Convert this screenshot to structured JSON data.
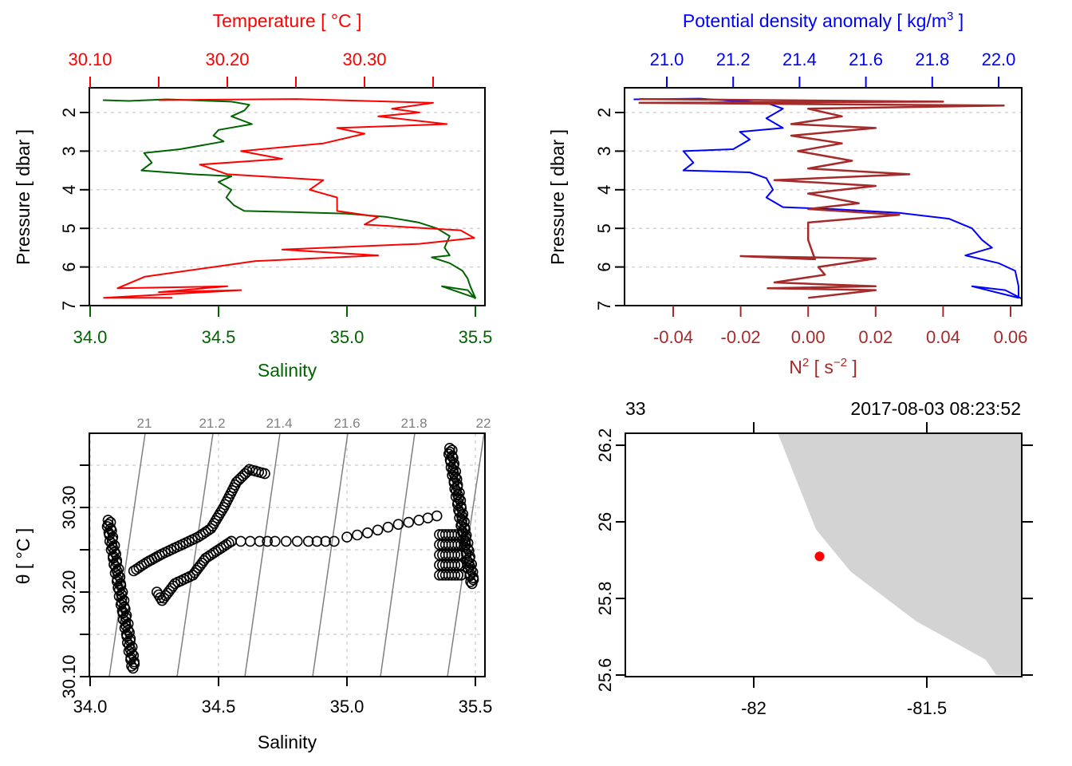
{
  "colors": {
    "salinity": "#006400",
    "temperature": "#ff0000",
    "density": "#0000ff",
    "n2": "#a52a2a",
    "grid": "#d3d3d3",
    "isopycnal": "#808080",
    "land": "#d3d3d3",
    "station": "#ff0000",
    "frame": "#000000"
  },
  "chart_data": [
    {
      "type": "line",
      "panel": "salinity-temperature-profile",
      "title": "",
      "top_axis": {
        "label": "Temperature [ °C ]",
        "ticks": [
          30.1,
          30.15,
          30.2,
          30.25,
          30.3,
          30.35
        ],
        "tick_labels": [
          "30.10",
          "",
          "30.20",
          "",
          "30.30",
          ""
        ],
        "range": [
          30.1,
          30.388
        ]
      },
      "bottom_axis": {
        "label": "Salinity",
        "ticks": [
          34.0,
          34.5,
          35.0,
          35.5
        ],
        "tick_labels": [
          "34.0",
          "34.5",
          "35.0",
          "35.5"
        ],
        "range": [
          34.0,
          35.54
        ]
      },
      "ylabel": "Pressure [ dbar ]",
      "y_ticks": [
        2,
        3,
        4,
        5,
        6,
        7
      ],
      "ylim": [
        7,
        1.35
      ],
      "grid": "horizontal dashed",
      "series": [
        {
          "name": "Salinity",
          "axis": "bottom",
          "points": [
            [
              34.05,
              1.68
            ],
            [
              34.15,
              1.7
            ],
            [
              34.3,
              1.66
            ],
            [
              34.55,
              1.72
            ],
            [
              34.62,
              1.8
            ],
            [
              34.6,
              1.95
            ],
            [
              34.55,
              2.1
            ],
            [
              34.63,
              2.3
            ],
            [
              34.5,
              2.45
            ],
            [
              34.48,
              2.6
            ],
            [
              34.52,
              2.75
            ],
            [
              34.35,
              2.95
            ],
            [
              34.21,
              3.05
            ],
            [
              34.24,
              3.3
            ],
            [
              34.2,
              3.5
            ],
            [
              34.4,
              3.6
            ],
            [
              34.55,
              3.65
            ],
            [
              34.5,
              3.8
            ],
            [
              34.55,
              4.0
            ],
            [
              34.53,
              4.2
            ],
            [
              34.56,
              4.4
            ],
            [
              34.6,
              4.55
            ],
            [
              34.8,
              4.58
            ],
            [
              35.0,
              4.62
            ],
            [
              35.15,
              4.7
            ],
            [
              35.28,
              4.85
            ],
            [
              35.35,
              5.0
            ],
            [
              35.4,
              5.2
            ],
            [
              35.38,
              5.5
            ],
            [
              35.4,
              5.7
            ],
            [
              35.33,
              5.75
            ],
            [
              35.4,
              5.9
            ],
            [
              35.45,
              6.1
            ],
            [
              35.47,
              6.3
            ],
            [
              35.48,
              6.5
            ],
            [
              35.5,
              6.8
            ],
            [
              35.37,
              6.5
            ],
            [
              35.47,
              6.6
            ],
            [
              35.5,
              6.82
            ]
          ]
        },
        {
          "name": "Temperature",
          "axis": "top",
          "points": [
            [
              30.15,
              1.68
            ],
            [
              30.25,
              1.65
            ],
            [
              30.32,
              1.72
            ],
            [
              30.35,
              1.75
            ],
            [
              30.32,
              1.9
            ],
            [
              30.34,
              2.0
            ],
            [
              30.31,
              2.1
            ],
            [
              30.36,
              2.3
            ],
            [
              30.28,
              2.4
            ],
            [
              30.3,
              2.55
            ],
            [
              30.27,
              2.8
            ],
            [
              30.21,
              3.0
            ],
            [
              30.24,
              3.2
            ],
            [
              30.18,
              3.35
            ],
            [
              30.2,
              3.6
            ],
            [
              30.27,
              3.75
            ],
            [
              30.26,
              4.0
            ],
            [
              30.28,
              4.2
            ],
            [
              30.28,
              4.55
            ],
            [
              30.31,
              4.7
            ],
            [
              30.3,
              4.9
            ],
            [
              30.37,
              5.05
            ],
            [
              30.38,
              5.25
            ],
            [
              30.34,
              5.4
            ],
            [
              30.24,
              5.55
            ],
            [
              30.31,
              5.7
            ],
            [
              30.22,
              5.85
            ],
            [
              30.19,
              6.0
            ],
            [
              30.14,
              6.25
            ],
            [
              30.12,
              6.55
            ],
            [
              30.2,
              6.5
            ],
            [
              30.15,
              6.65
            ],
            [
              30.21,
              6.6
            ],
            [
              30.11,
              6.8
            ],
            [
              30.16,
              6.8
            ]
          ]
        }
      ]
    },
    {
      "type": "line",
      "panel": "density-n2-profile",
      "title": "",
      "top_axis": {
        "label": "Potential density anomaly [ kg/m³ ]",
        "ticks": [
          21.0,
          21.2,
          21.4,
          21.6,
          21.8,
          22.0
        ],
        "tick_labels": [
          "21.0",
          "21.2",
          "21.4",
          "21.6",
          "21.8",
          "22.0"
        ],
        "range": [
          20.88,
          22.08
        ]
      },
      "bottom_axis": {
        "label": "N² [ s⁻² ]",
        "ticks": [
          -0.04,
          -0.02,
          0.0,
          0.02,
          0.04,
          0.06
        ],
        "tick_labels": [
          "-0.04",
          "-0.02",
          "0.00",
          "0.02",
          "0.04",
          "0.06"
        ],
        "range": [
          -0.054,
          0.064
        ]
      },
      "ylabel": "Pressure [ dbar ]",
      "y_ticks": [
        2,
        3,
        4,
        5,
        6,
        7
      ],
      "ylim": [
        7,
        1.35
      ],
      "grid": "horizontal dashed",
      "series": [
        {
          "name": "Potential density anomaly",
          "axis": "top",
          "points": [
            [
              20.9,
              1.66
            ],
            [
              21.1,
              1.64
            ],
            [
              21.2,
              1.7
            ],
            [
              21.3,
              1.75
            ],
            [
              21.35,
              1.9
            ],
            [
              21.33,
              2.0
            ],
            [
              21.3,
              2.15
            ],
            [
              21.35,
              2.4
            ],
            [
              21.22,
              2.5
            ],
            [
              21.25,
              2.7
            ],
            [
              21.2,
              2.95
            ],
            [
              21.05,
              3.0
            ],
            [
              21.08,
              3.3
            ],
            [
              21.05,
              3.5
            ],
            [
              21.25,
              3.55
            ],
            [
              21.3,
              3.7
            ],
            [
              21.32,
              4.0
            ],
            [
              21.3,
              4.2
            ],
            [
              21.35,
              4.45
            ],
            [
              21.5,
              4.5
            ],
            [
              21.7,
              4.6
            ],
            [
              21.85,
              4.75
            ],
            [
              21.92,
              5.0
            ],
            [
              21.95,
              5.3
            ],
            [
              21.98,
              5.5
            ],
            [
              21.9,
              5.7
            ],
            [
              22.0,
              5.9
            ],
            [
              22.05,
              6.1
            ],
            [
              22.06,
              6.5
            ],
            [
              22.06,
              6.8
            ],
            [
              21.92,
              6.5
            ],
            [
              22.02,
              6.6
            ],
            [
              22.07,
              6.82
            ]
          ]
        },
        {
          "name": "N2",
          "axis": "bottom",
          "points": [
            [
              -0.05,
              1.65
            ],
            [
              0.04,
              1.72
            ],
            [
              -0.05,
              1.75
            ],
            [
              0.058,
              1.82
            ],
            [
              0.0,
              1.9
            ],
            [
              0.01,
              2.1
            ],
            [
              -0.005,
              2.3
            ],
            [
              0.02,
              2.4
            ],
            [
              -0.005,
              2.6
            ],
            [
              0.01,
              2.8
            ],
            [
              -0.003,
              3.0
            ],
            [
              0.013,
              3.25
            ],
            [
              0.0,
              3.45
            ],
            [
              0.03,
              3.6
            ],
            [
              -0.01,
              3.75
            ],
            [
              0.02,
              3.9
            ],
            [
              0.0,
              4.1
            ],
            [
              0.015,
              4.35
            ],
            [
              0.0,
              4.5
            ],
            [
              0.027,
              4.65
            ],
            [
              0.0,
              4.85
            ],
            [
              0.0,
              5.3
            ],
            [
              0.002,
              5.8
            ],
            [
              -0.02,
              5.72
            ],
            [
              0.02,
              5.78
            ],
            [
              0.003,
              6.0
            ],
            [
              0.005,
              6.2
            ],
            [
              -0.01,
              6.4
            ],
            [
              0.02,
              6.5
            ],
            [
              -0.012,
              6.55
            ],
            [
              0.02,
              6.6
            ],
            [
              0.0,
              6.8
            ]
          ]
        }
      ]
    },
    {
      "type": "scatter",
      "panel": "ts-diagram",
      "title": "",
      "xlabel": "Salinity",
      "ylabel": "θ [ °C ]",
      "x_ticks": [
        34.0,
        34.5,
        35.0,
        35.5
      ],
      "x_tick_labels": [
        "34.0",
        "34.5",
        "35.0",
        "35.5"
      ],
      "y_ticks": [
        30.1,
        30.15,
        30.2,
        30.25,
        30.3,
        30.35
      ],
      "y_tick_labels": [
        "30.10",
        "",
        "30.20",
        "",
        "30.30",
        ""
      ],
      "xlim": [
        34.0,
        35.54
      ],
      "ylim": [
        30.1,
        30.388
      ],
      "grid": "dashed",
      "isopycnals": {
        "labels": [
          "21",
          "21.2",
          "21.4",
          "21.6",
          "21.8",
          "22"
        ],
        "sigma": [
          21.0,
          21.2,
          21.4,
          21.6,
          21.8,
          22.0
        ]
      },
      "clusters": [
        {
          "name": "fresh-cold-limb",
          "from": [
            34.07,
            30.285
          ],
          "to": [
            34.17,
            30.11
          ]
        },
        {
          "name": "mid-loop",
          "points": [
            [
              34.17,
              30.225
            ],
            [
              34.22,
              30.235
            ],
            [
              34.28,
              30.245
            ],
            [
              34.35,
              30.255
            ],
            [
              34.42,
              30.265
            ],
            [
              34.47,
              30.275
            ],
            [
              34.52,
              30.3
            ],
            [
              34.57,
              30.33
            ],
            [
              34.62,
              30.345
            ],
            [
              34.68,
              30.34
            ]
          ]
        },
        {
          "name": "lower-loop",
          "points": [
            [
              34.26,
              30.2
            ],
            [
              34.28,
              30.19
            ],
            [
              34.33,
              30.21
            ],
            [
              34.4,
              30.22
            ],
            [
              34.45,
              30.24
            ],
            [
              34.5,
              30.25
            ],
            [
              34.55,
              30.26
            ]
          ]
        },
        {
          "name": "horizontal-track",
          "points": [
            [
              34.55,
              30.26
            ],
            [
              34.66,
              30.26
            ],
            [
              34.72,
              30.26
            ],
            [
              34.85,
              30.26
            ],
            [
              34.95,
              30.26
            ],
            [
              35.0,
              30.265
            ],
            [
              35.08,
              30.27
            ],
            [
              35.2,
              30.28
            ],
            [
              35.28,
              30.285
            ],
            [
              35.35,
              30.29
            ]
          ]
        },
        {
          "name": "salty-limb",
          "from": [
            35.4,
            30.37
          ],
          "to": [
            35.49,
            30.21
          ]
        }
      ]
    },
    {
      "type": "map",
      "panel": "station-map",
      "title_left": "33",
      "title_right": "2017-08-03 08:23:52",
      "x_ticks": [
        -82,
        -81.5
      ],
      "x_tick_labels": [
        "-82",
        "-81.5"
      ],
      "y_ticks": [
        25.6,
        25.8,
        26.0,
        26.2
      ],
      "y_tick_labels": [
        "25.6",
        "25.8",
        "26",
        "26.2"
      ],
      "xlim": [
        -82.37,
        -81.22
      ],
      "ylim": [
        25.6,
        26.23
      ],
      "coastline": [
        [
          -81.93,
          26.23
        ],
        [
          -81.82,
          25.98
        ],
        [
          -81.72,
          25.87
        ],
        [
          -81.53,
          25.74
        ],
        [
          -81.33,
          25.64
        ],
        [
          -81.3,
          25.6
        ],
        [
          -81.22,
          25.6
        ],
        [
          -81.22,
          26.23
        ]
      ],
      "station": {
        "lon": -81.81,
        "lat": 25.91
      }
    }
  ]
}
